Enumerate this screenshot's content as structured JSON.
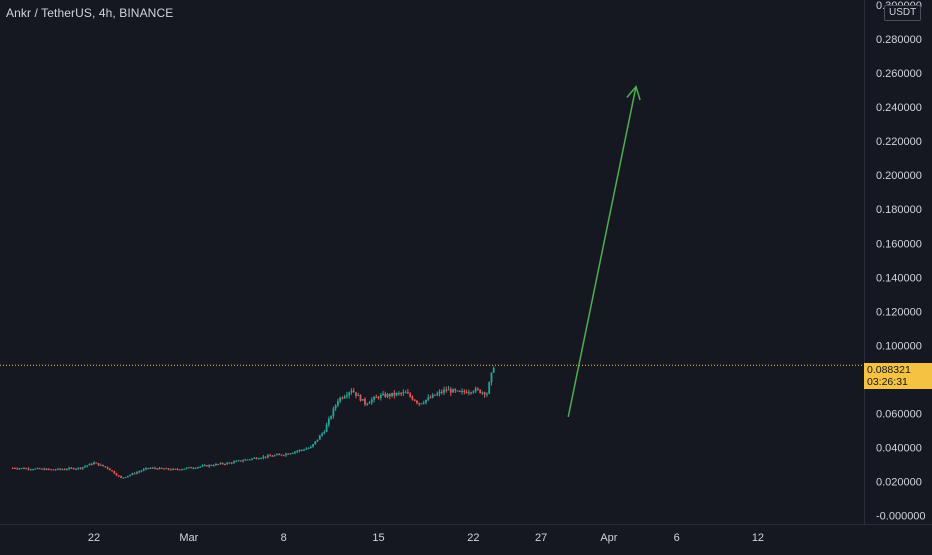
{
  "header": {
    "title": "Ankr / TetherUS, 4h, BINANCE",
    "currency_badge": "USDT"
  },
  "last_price": {
    "value": "0.088321",
    "countdown": "03:26:31"
  },
  "colors": {
    "background": "#161821",
    "up": "#26a69a",
    "down": "#ef5350",
    "arrow": "#4caf50",
    "price_line": "#f5c242",
    "axis_text": "#d1d4dc"
  },
  "chart_data": {
    "type": "candlestick",
    "title": "Ankr / TetherUS, 4h, BINANCE",
    "x_tick_labels": [
      "22",
      "Mar",
      "8",
      "15",
      "22",
      "27",
      "Apr",
      "6",
      "12"
    ],
    "y_tick_labels": [
      "0.300000",
      "0.280000",
      "0.260000",
      "0.240000",
      "0.220000",
      "0.200000",
      "0.180000",
      "0.160000",
      "0.140000",
      "0.120000",
      "0.100000",
      "0.080000",
      "0.060000",
      "0.040000",
      "0.020000",
      "-0.000000"
    ],
    "y_ticks": [
      0.3,
      0.28,
      0.26,
      0.24,
      0.22,
      0.2,
      0.18,
      0.16,
      0.14,
      0.12,
      0.1,
      0.08,
      0.06,
      0.04,
      0.02,
      0.0
    ],
    "ylim": [
      -0.002,
      0.3
    ],
    "grid": false,
    "last_price": 0.088321,
    "price_path": [
      [
        "Feb 16",
        0.028
      ],
      [
        "Feb 19",
        0.027
      ],
      [
        "Feb 21",
        0.028
      ],
      [
        "Feb 22",
        0.031
      ],
      [
        "Feb 23",
        0.028
      ],
      [
        "Feb 24",
        0.022
      ],
      [
        "Feb 26",
        0.028
      ],
      [
        "Feb 28",
        0.027
      ],
      [
        "Mar 2",
        0.029
      ],
      [
        "Mar 4",
        0.031
      ],
      [
        "Mar 6",
        0.034
      ],
      [
        "Mar 8",
        0.036
      ],
      [
        "Mar 10",
        0.04
      ],
      [
        "Mar 11",
        0.05
      ],
      [
        "Mar 12",
        0.068
      ],
      [
        "Mar 13",
        0.074
      ],
      [
        "Mar 14",
        0.066
      ],
      [
        "Mar 15",
        0.07
      ],
      [
        "Mar 17",
        0.072
      ],
      [
        "Mar 18",
        0.066
      ],
      [
        "Mar 20",
        0.074
      ],
      [
        "Mar 21",
        0.072
      ],
      [
        "Mar 22",
        0.074
      ],
      [
        "Mar 23",
        0.072
      ],
      [
        "Mar 23 12:00",
        0.088
      ]
    ],
    "projection_arrow": {
      "from": [
        "Mar 29",
        0.058
      ],
      "to": [
        "Apr 3",
        0.252
      ]
    }
  }
}
